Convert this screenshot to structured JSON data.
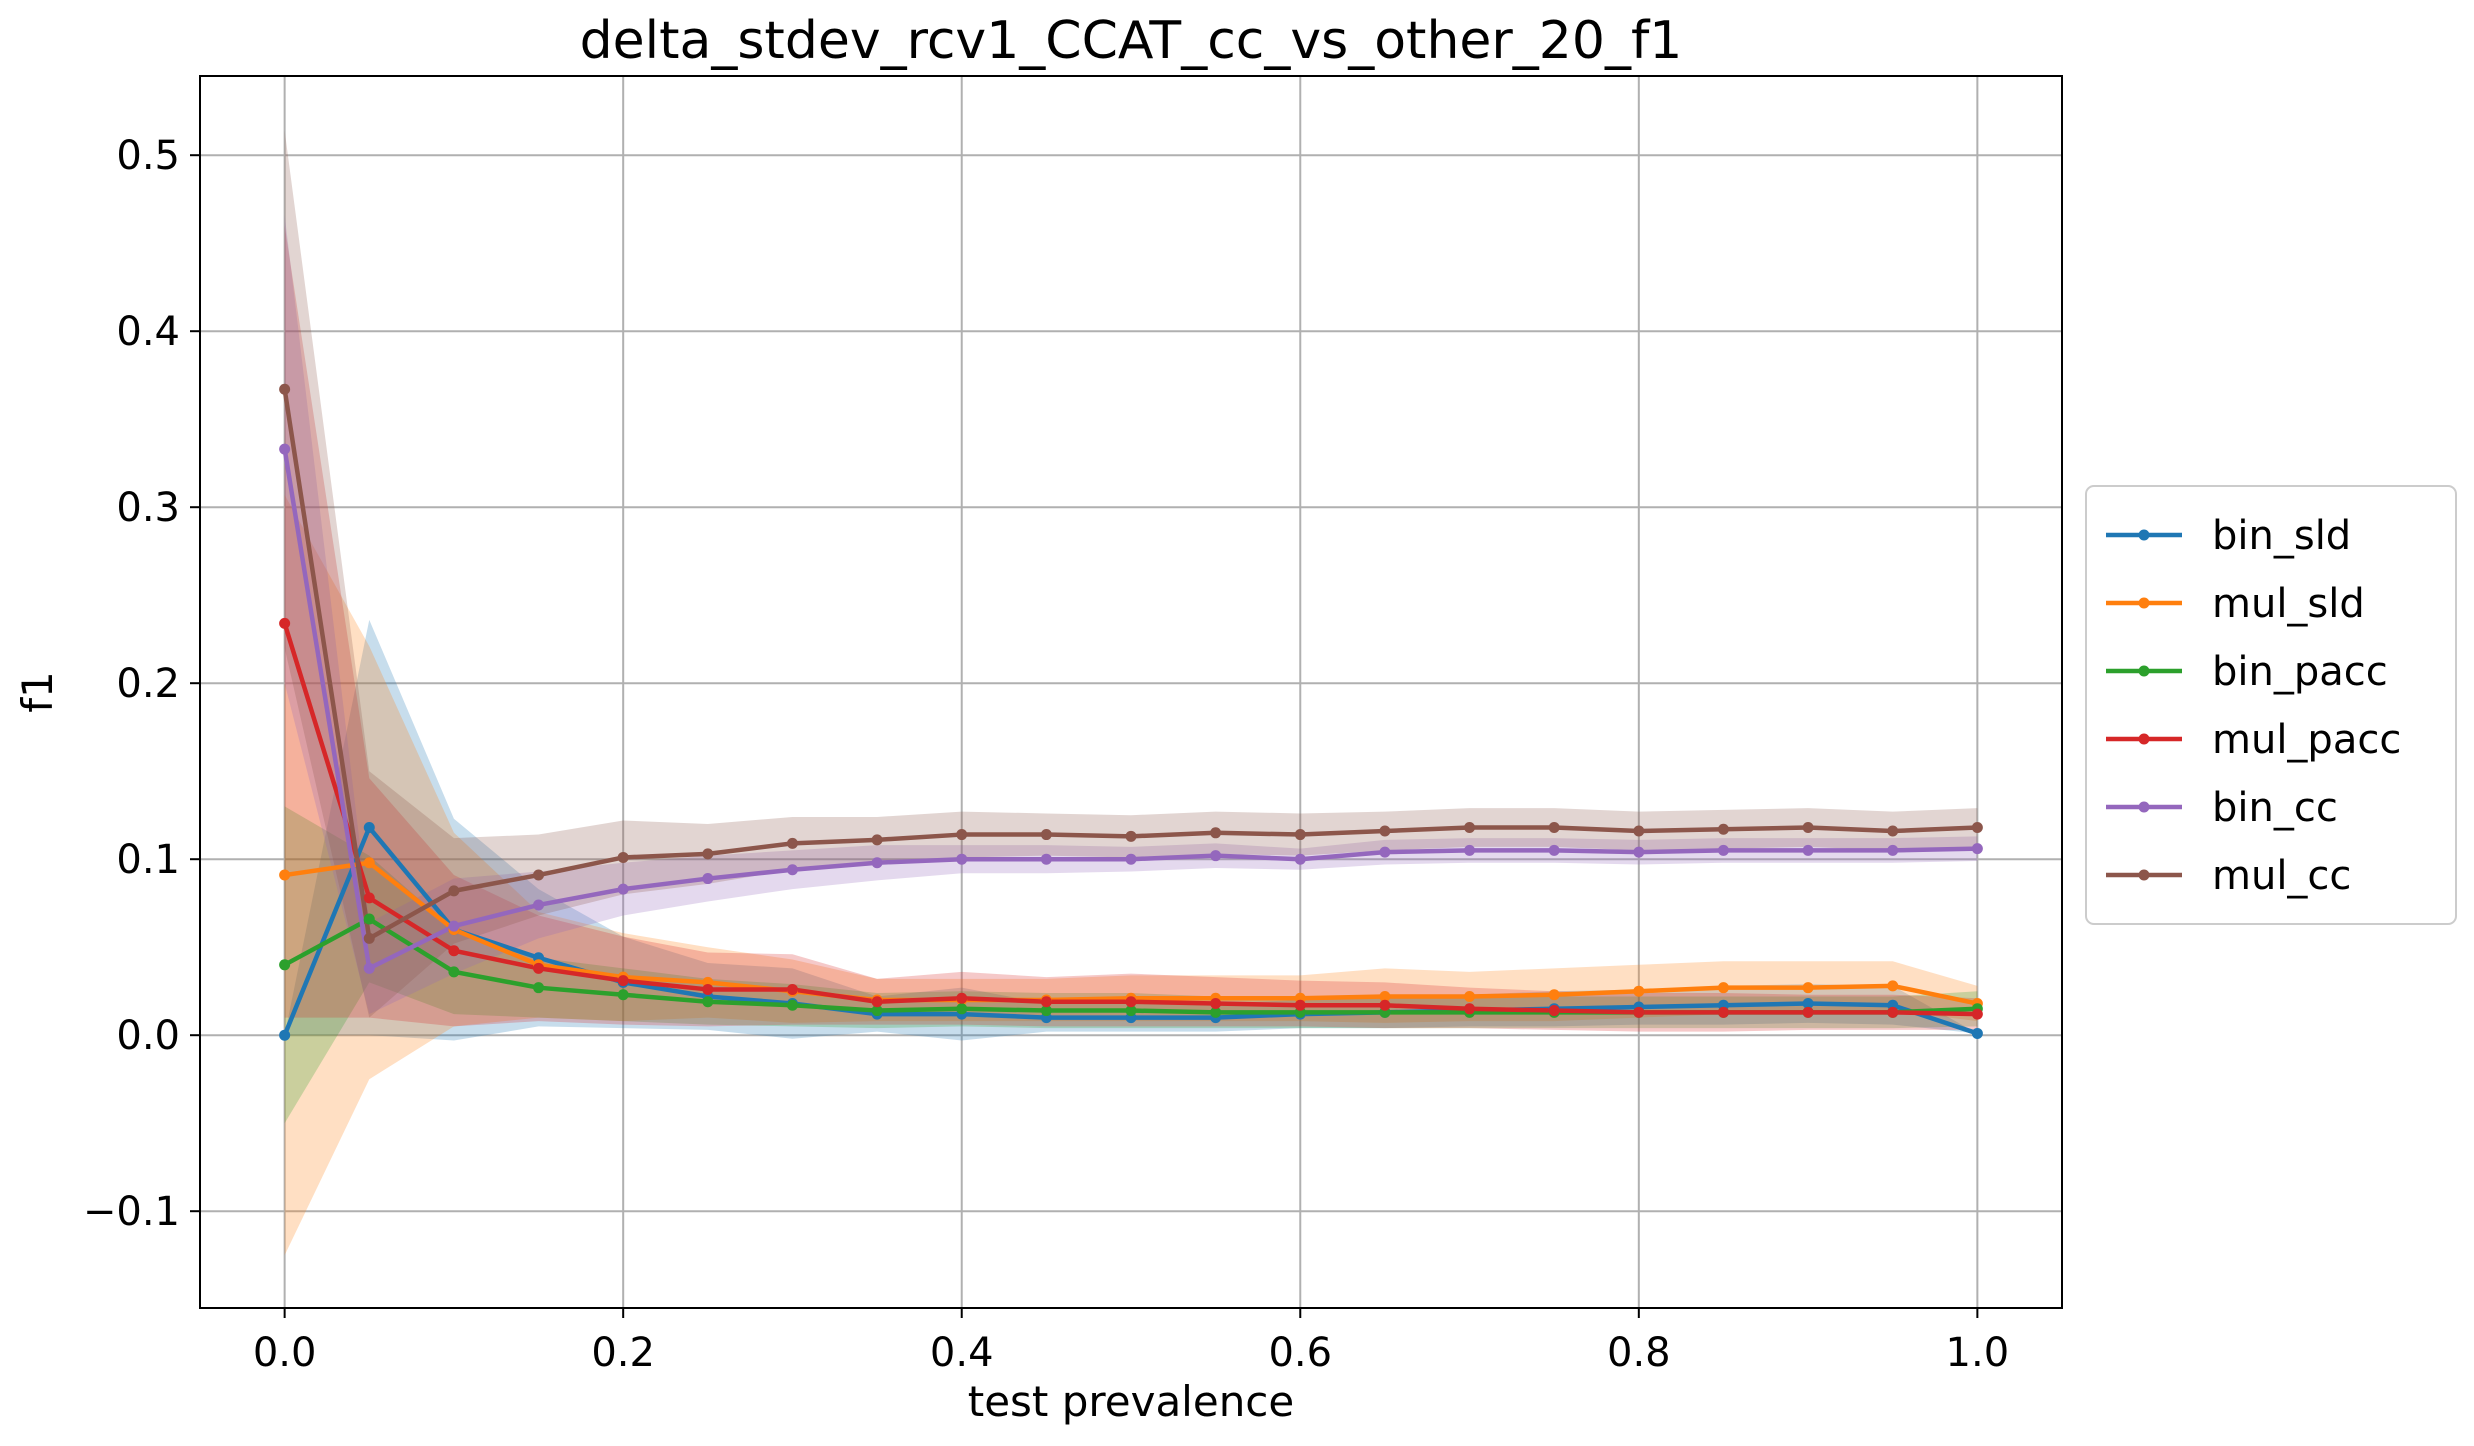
{
  "chart_data": {
    "type": "line",
    "title": "delta_stdev_rcv1_CCAT_cc_vs_other_20_f1",
    "xlabel": "test prevalence",
    "ylabel": "f1",
    "xlim": [
      -0.05,
      1.05
    ],
    "ylim": [
      -0.155,
      0.545
    ],
    "xticks": [
      0.0,
      0.2,
      0.4,
      0.6,
      0.8,
      1.0
    ],
    "xtick_labels": [
      "0.0",
      "0.2",
      "0.4",
      "0.6",
      "0.8",
      "1.0"
    ],
    "yticks": [
      -0.1,
      0.0,
      0.1,
      0.2,
      0.3,
      0.4,
      0.5
    ],
    "ytick_labels": [
      "−0.1",
      "0.0",
      "0.1",
      "0.2",
      "0.3",
      "0.4",
      "0.5"
    ],
    "grid": true,
    "legend_position": "center-right-outside",
    "x": [
      0.0,
      0.05,
      0.1,
      0.15,
      0.2,
      0.25,
      0.3,
      0.35,
      0.4,
      0.45,
      0.5,
      0.55,
      0.6,
      0.65,
      0.7,
      0.75,
      0.8,
      0.85,
      0.9,
      0.95,
      1.0
    ],
    "series": [
      {
        "name": "bin_sld",
        "color": "#1f77b4",
        "values": [
          0.0,
          0.118,
          0.06,
          0.044,
          0.03,
          0.022,
          0.018,
          0.012,
          0.012,
          0.01,
          0.01,
          0.01,
          0.012,
          0.013,
          0.014,
          0.015,
          0.016,
          0.017,
          0.018,
          0.017,
          0.001
        ],
        "lower": [
          0.0,
          0.0,
          -0.003,
          0.005,
          0.004,
          0.003,
          -0.002,
          0.002,
          -0.003,
          0.002,
          0.002,
          0.002,
          0.004,
          0.004,
          0.005,
          0.005,
          0.006,
          0.006,
          0.007,
          0.006,
          0.001
        ],
        "upper": [
          0.0,
          0.236,
          0.123,
          0.083,
          0.056,
          0.041,
          0.038,
          0.022,
          0.027,
          0.018,
          0.018,
          0.018,
          0.02,
          0.022,
          0.023,
          0.025,
          0.026,
          0.028,
          0.029,
          0.028,
          0.001
        ]
      },
      {
        "name": "mul_sld",
        "color": "#ff7f0e",
        "values": [
          0.091,
          0.098,
          0.06,
          0.04,
          0.033,
          0.03,
          0.025,
          0.02,
          0.02,
          0.02,
          0.021,
          0.021,
          0.021,
          0.022,
          0.022,
          0.023,
          0.025,
          0.027,
          0.027,
          0.028,
          0.018
        ],
        "lower": [
          -0.125,
          -0.025,
          0.005,
          0.01,
          0.008,
          0.01,
          0.007,
          0.008,
          0.008,
          0.008,
          0.008,
          0.008,
          0.008,
          0.007,
          0.008,
          0.008,
          0.01,
          0.012,
          0.012,
          0.014,
          0.008
        ],
        "upper": [
          0.307,
          0.221,
          0.115,
          0.07,
          0.058,
          0.05,
          0.043,
          0.032,
          0.032,
          0.032,
          0.034,
          0.034,
          0.034,
          0.038,
          0.036,
          0.038,
          0.04,
          0.042,
          0.042,
          0.042,
          0.028
        ]
      },
      {
        "name": "bin_pacc",
        "color": "#2ca02c",
        "values": [
          0.04,
          0.066,
          0.036,
          0.027,
          0.023,
          0.019,
          0.017,
          0.014,
          0.015,
          0.014,
          0.014,
          0.013,
          0.013,
          0.013,
          0.013,
          0.013,
          0.013,
          0.013,
          0.013,
          0.013,
          0.015
        ],
        "lower": [
          -0.05,
          0.03,
          0.012,
          0.01,
          0.008,
          0.006,
          0.005,
          0.004,
          0.005,
          0.004,
          0.004,
          0.004,
          0.004,
          0.004,
          0.004,
          0.004,
          0.004,
          0.004,
          0.004,
          0.004,
          0.005
        ],
        "upper": [
          0.13,
          0.102,
          0.06,
          0.044,
          0.038,
          0.032,
          0.029,
          0.024,
          0.025,
          0.024,
          0.024,
          0.022,
          0.022,
          0.022,
          0.022,
          0.022,
          0.022,
          0.022,
          0.022,
          0.022,
          0.025
        ]
      },
      {
        "name": "mul_pacc",
        "color": "#d62728",
        "values": [
          0.234,
          0.078,
          0.048,
          0.038,
          0.031,
          0.026,
          0.026,
          0.019,
          0.021,
          0.019,
          0.019,
          0.018,
          0.017,
          0.017,
          0.015,
          0.014,
          0.013,
          0.013,
          0.013,
          0.013,
          0.012
        ],
        "lower": [
          0.01,
          0.01,
          0.005,
          0.008,
          0.006,
          0.005,
          0.006,
          0.006,
          0.006,
          0.005,
          0.005,
          0.005,
          0.005,
          0.004,
          0.004,
          0.003,
          0.002,
          0.002,
          0.003,
          0.003,
          0.003
        ],
        "upper": [
          0.46,
          0.146,
          0.091,
          0.068,
          0.056,
          0.047,
          0.046,
          0.032,
          0.036,
          0.033,
          0.035,
          0.033,
          0.031,
          0.03,
          0.027,
          0.025,
          0.024,
          0.024,
          0.023,
          0.023,
          0.021
        ]
      },
      {
        "name": "bin_cc",
        "color": "#9467bd",
        "values": [
          0.333,
          0.038,
          0.062,
          0.074,
          0.083,
          0.089,
          0.094,
          0.098,
          0.1,
          0.1,
          0.1,
          0.102,
          0.1,
          0.104,
          0.105,
          0.105,
          0.104,
          0.105,
          0.105,
          0.105,
          0.106
        ],
        "lower": [
          0.2,
          0.012,
          0.035,
          0.055,
          0.068,
          0.076,
          0.083,
          0.088,
          0.092,
          0.092,
          0.093,
          0.095,
          0.094,
          0.097,
          0.098,
          0.098,
          0.097,
          0.098,
          0.098,
          0.098,
          0.099
        ],
        "upper": [
          0.466,
          0.064,
          0.089,
          0.093,
          0.098,
          0.102,
          0.105,
          0.108,
          0.108,
          0.108,
          0.107,
          0.109,
          0.106,
          0.111,
          0.112,
          0.112,
          0.111,
          0.112,
          0.112,
          0.112,
          0.113
        ]
      },
      {
        "name": "mul_cc",
        "color": "#8c564b",
        "values": [
          0.367,
          0.055,
          0.082,
          0.091,
          0.101,
          0.103,
          0.109,
          0.111,
          0.114,
          0.114,
          0.113,
          0.115,
          0.114,
          0.116,
          0.118,
          0.118,
          0.116,
          0.117,
          0.118,
          0.116,
          0.118
        ],
        "lower": [
          0.22,
          0.01,
          0.052,
          0.068,
          0.08,
          0.086,
          0.094,
          0.098,
          0.101,
          0.102,
          0.101,
          0.103,
          0.102,
          0.105,
          0.107,
          0.107,
          0.105,
          0.106,
          0.107,
          0.105,
          0.107
        ],
        "upper": [
          0.514,
          0.15,
          0.112,
          0.114,
          0.122,
          0.12,
          0.124,
          0.124,
          0.127,
          0.126,
          0.125,
          0.127,
          0.126,
          0.127,
          0.129,
          0.129,
          0.127,
          0.128,
          0.129,
          0.127,
          0.129
        ]
      }
    ]
  }
}
